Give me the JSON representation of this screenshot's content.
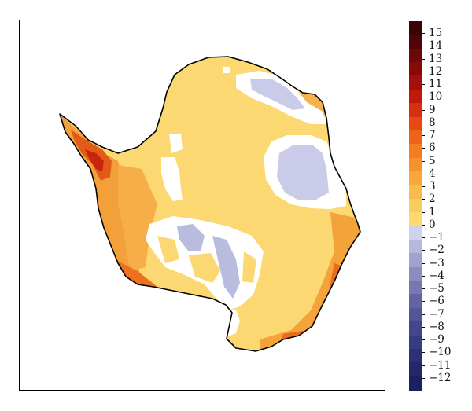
{
  "map": {
    "region": "Antarctica",
    "land_fill": "#fcd872",
    "outline_color": "#000000",
    "no_data_color": "#ffffff"
  },
  "colorbar": {
    "ticks": [
      "15",
      "14",
      "13",
      "12",
      "11",
      "10",
      "9",
      "8",
      "7",
      "6",
      "5",
      "4",
      "3",
      "2",
      "1",
      "0",
      "−1",
      "−2",
      "−3",
      "−4",
      "−5",
      "−6",
      "−7",
      "−8",
      "−9",
      "−10",
      "−11",
      "−12"
    ],
    "colors": [
      "#3a0407",
      "#4f0508",
      "#6a0708",
      "#860a09",
      "#a40f0a",
      "#bf1b0c",
      "#d7300f",
      "#e44a13",
      "#ec641b",
      "#f27d23",
      "#f5922c",
      "#f8a738",
      "#f9bb4b",
      "#fbcb5d",
      "#fdda6f",
      "#cfd2ec",
      "#b6b9dc",
      "#a0a3cd",
      "#8a8dbe",
      "#7678b0",
      "#6264a2",
      "#525596",
      "#43478a",
      "#373b7f",
      "#2d3174",
      "#24286a",
      "#1c2060"
    ]
  }
}
